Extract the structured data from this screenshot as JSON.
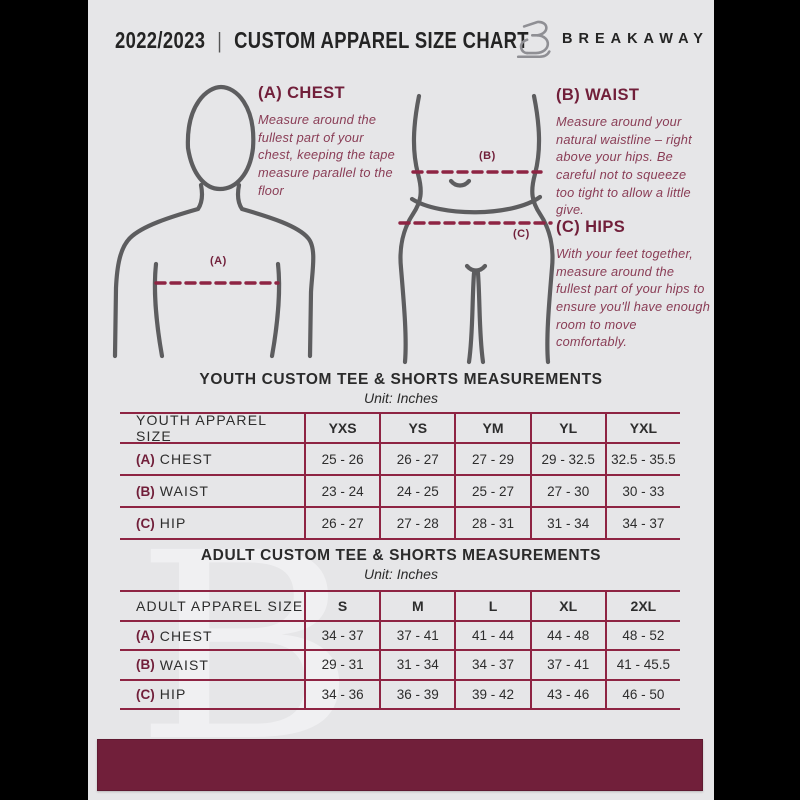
{
  "colors": {
    "maroon": "#711F3A",
    "table_line": "#8E2443",
    "text_dark": "#2D2D2D",
    "guide_text": "#8A3D56",
    "page_bg": "#E6E6E8",
    "figure_stroke": "#5D5D5F",
    "logo_gray": "#8F8F94",
    "watermark": "#F0F0F2"
  },
  "header": {
    "season": "2022/2023",
    "separator": "|",
    "title": "CUSTOM APPAREL SIZE CHART",
    "brand": "BREAKAWAY",
    "logo_icon": "breakaway-b-monogram"
  },
  "guide": {
    "sections": [
      {
        "heading": "(A) CHEST",
        "marker": "(A)",
        "body": "Measure around the fullest part of your chest, keeping the tape measure parallel to the floor"
      },
      {
        "heading": "(B) WAIST",
        "marker": "(B)",
        "body": "Measure around your natural waistline – right above your hips. Be careful not to squeeze too tight to allow a little give."
      },
      {
        "heading": "(C) HIPS",
        "marker": "(C)",
        "body": "With your feet together, measure around the fullest part of your hips to ensure you'll have enough room to move comfortably."
      }
    ]
  },
  "chart_data": [
    {
      "type": "table",
      "title": "YOUTH CUSTOM TEE & SHORTS MEASUREMENTS",
      "subtitle": "Unit: Inches",
      "columns": [
        "YOUTH APPAREL SIZE",
        "YXS",
        "YS",
        "YM",
        "YL",
        "YXL"
      ],
      "rows": [
        {
          "prefix": "(A)",
          "label": "CHEST",
          "values": [
            "25 - 26",
            "26 - 27",
            "27 - 29",
            "29 - 32.5",
            "32.5 - 35.5"
          ]
        },
        {
          "prefix": "(B)",
          "label": "WAIST",
          "values": [
            "23 - 24",
            "24 - 25",
            "25 - 27",
            "27 - 30",
            "30 - 33"
          ]
        },
        {
          "prefix": "(C)",
          "label": "HIP",
          "values": [
            "26 - 27",
            "27 - 28",
            "28 - 31",
            "31 - 34",
            "34 - 37"
          ]
        }
      ]
    },
    {
      "type": "table",
      "title": "ADULT CUSTOM TEE & SHORTS MEASUREMENTS",
      "subtitle": "Unit: Inches",
      "columns": [
        "ADULT APPAREL SIZE",
        "S",
        "M",
        "L",
        "XL",
        "2XL"
      ],
      "rows": [
        {
          "prefix": "(A)",
          "label": "CHEST",
          "values": [
            "34 - 37",
            "37 - 41",
            "41 - 44",
            "44 - 48",
            "48 - 52"
          ]
        },
        {
          "prefix": "(B)",
          "label": "WAIST",
          "values": [
            "29 - 31",
            "31 - 34",
            "34 - 37",
            "37 - 41",
            "41 - 45.5"
          ]
        },
        {
          "prefix": "(C)",
          "label": "HIP",
          "values": [
            "34 - 36",
            "36 - 39",
            "39 - 42",
            "43 - 46",
            "46 - 50"
          ]
        }
      ]
    }
  ],
  "watermark": {
    "letter": "B"
  }
}
